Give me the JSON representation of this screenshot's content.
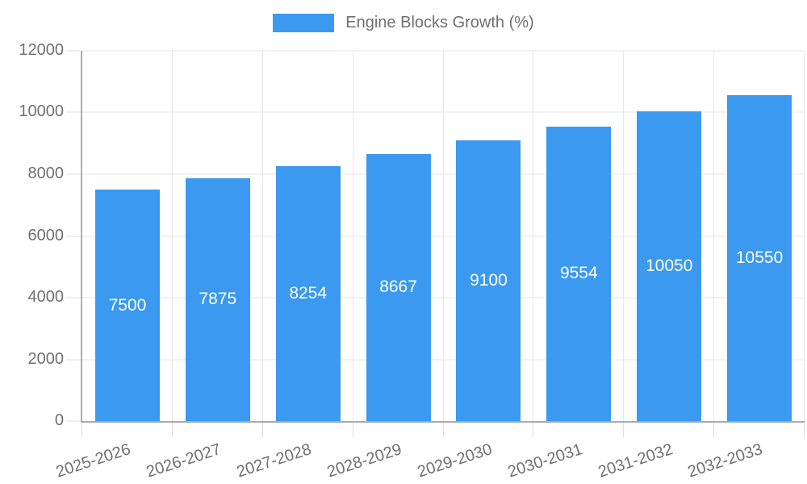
{
  "legend": {
    "label": "Engine Blocks Growth (%)"
  },
  "chart_data": {
    "type": "bar",
    "title": "Engine Blocks Growth (%)",
    "categories": [
      "2025-2026",
      "2026-2027",
      "2027-2028",
      "2028-2029",
      "2029-2030",
      "2030-2031",
      "2031-2032",
      "2032-2033"
    ],
    "values": [
      7500,
      7875,
      8254,
      8667,
      9100,
      9554,
      10050,
      10550
    ],
    "series": [
      {
        "name": "Engine Blocks Growth (%)",
        "values": [
          7500,
          7875,
          8254,
          8667,
          9100,
          9554,
          10050,
          10550
        ]
      }
    ],
    "xlabel": "",
    "ylabel": "",
    "ylim": [
      0,
      12000
    ],
    "yticks": [
      0,
      2000,
      4000,
      6000,
      8000,
      10000,
      12000
    ],
    "grid": true,
    "legend_position": "top",
    "bar_label_position": "center-inside",
    "x_tick_rotation_deg": -18,
    "colors": {
      "bar": "#3B99EF",
      "bar_label": "#FFFFFF",
      "axis_text": "#707070",
      "gridline": "#E6E6E6",
      "axis_line": "#ABABAB",
      "tick": "#DCDCDC",
      "background": "#FFFFFF"
    }
  }
}
